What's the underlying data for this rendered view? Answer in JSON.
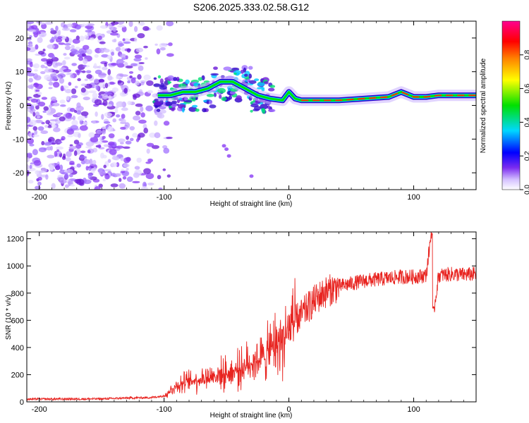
{
  "title": "S206.2025.333.02.58.G12",
  "chart_data": [
    {
      "type": "heatmap",
      "name": "spectrogram",
      "xlabel": "Height of straight line (km)",
      "ylabel": "Frequency (Hz)",
      "xlim": [
        -210,
        150
      ],
      "ylim": [
        -25,
        25
      ],
      "xticks": [
        -200,
        -100,
        0,
        100
      ],
      "yticks": [
        20,
        10,
        0,
        -10,
        -20
      ],
      "ridge": {
        "x": [
          -105,
          -95,
          -85,
          -75,
          -65,
          -55,
          -45,
          -35,
          -25,
          -15,
          -5,
          0,
          5,
          10,
          20,
          40,
          60,
          80,
          90,
          100,
          110,
          120,
          150
        ],
        "frequency_hz": [
          3,
          3,
          4,
          4,
          5,
          7,
          7,
          5,
          3,
          2,
          1.5,
          4,
          2,
          1.5,
          1.5,
          1.5,
          2,
          2.5,
          4,
          2.5,
          2.5,
          3,
          3
        ]
      },
      "colorbar": {
        "label": "Normalized spectral amplitude",
        "range": [
          0,
          1
        ],
        "ticks": [
          "0.0",
          "0.2",
          "0.4",
          "0.6",
          "0.8"
        ],
        "colors": [
          "#ffffff",
          "#c8b0ff",
          "#7b2cf0",
          "#0000ff",
          "#00d8ff",
          "#00e000",
          "#ffff00",
          "#ff8000",
          "#ff0000",
          "#ff0090"
        ]
      }
    },
    {
      "type": "line",
      "name": "snr",
      "xlabel": "Height of straight line (km)",
      "ylabel": "SNR (10 * v/v)",
      "xlim": [
        -210,
        150
      ],
      "ylim": [
        0,
        1250
      ],
      "xticks": [
        -200,
        -100,
        0,
        100
      ],
      "yticks": [
        0,
        200,
        400,
        600,
        800,
        1000,
        1200
      ],
      "color": "#e8231f",
      "series": [
        {
          "name": "SNR",
          "x": [
            -210,
            -150,
            -130,
            -110,
            -100,
            -95,
            -90,
            -80,
            -70,
            -60,
            -50,
            -40,
            -30,
            -20,
            -15,
            -10,
            -5,
            0,
            5,
            10,
            15,
            20,
            25,
            30,
            40,
            50,
            60,
            70,
            80,
            90,
            100,
            110,
            114,
            116,
            120,
            130,
            140,
            150
          ],
          "values": [
            20,
            22,
            28,
            32,
            45,
            80,
            120,
            150,
            170,
            190,
            210,
            240,
            290,
            330,
            380,
            430,
            470,
            520,
            600,
            640,
            690,
            740,
            780,
            810,
            850,
            870,
            890,
            900,
            910,
            920,
            920,
            930,
            1240,
            660,
            930,
            940,
            935,
            940
          ]
        }
      ]
    }
  ]
}
